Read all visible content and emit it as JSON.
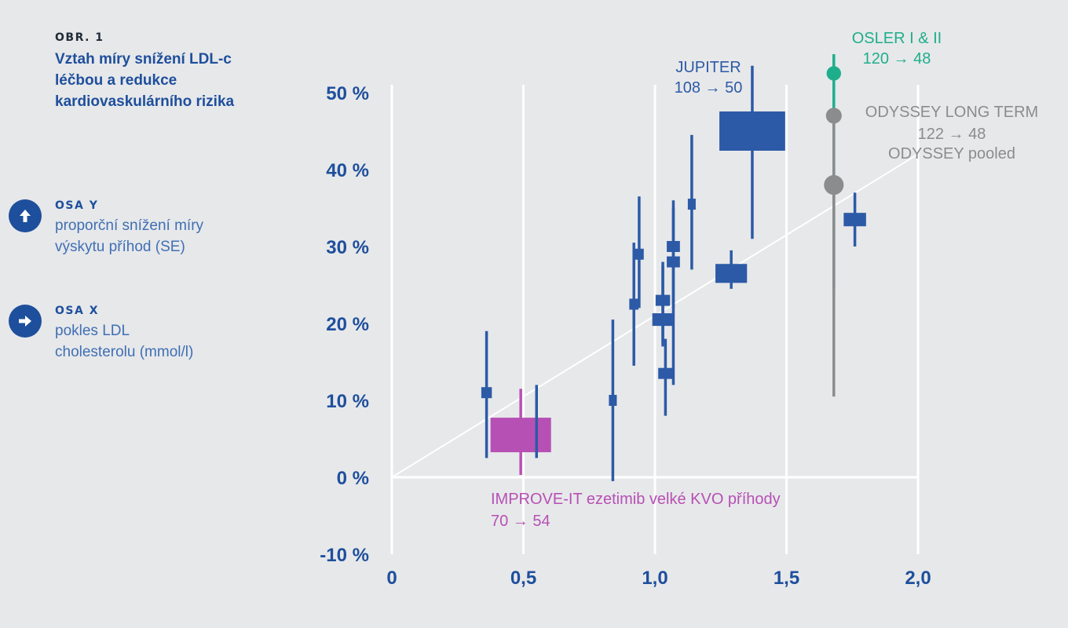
{
  "figure": {
    "label": "OBR. 1",
    "title": "Vztah míry snížení LDL-c léčbou a redukce kardiovaskulárního rizika"
  },
  "legend": {
    "y_axis": {
      "heading": "OSA Y",
      "description": "proporční snížení míry výskytu příhod (SE)",
      "icon": "arrow-up-icon"
    },
    "x_axis": {
      "heading": "OSA X",
      "description": "pokles LDL cholesterolu (mmol/l)",
      "icon": "arrow-right-icon"
    }
  },
  "colors": {
    "blue": "#2c5aa6",
    "magenta": "#b750b4",
    "green": "#1fae8c",
    "gray": "#8a8c8e",
    "gridline": "#ffffff",
    "tick_label": "#1e4f9c"
  },
  "chart_data": {
    "type": "scatter",
    "title": "Vztah míry snížení LDL-c léčbou a redukce kardiovaskulárního rizika",
    "xlabel": "pokles LDL cholesterolu (mmol/l)",
    "ylabel": "proporční snížení míry výskytu příhod (SE)",
    "xlim": [
      0,
      2.0
    ],
    "ylim": [
      -10,
      50
    ],
    "x_ticks": [
      {
        "value": 0,
        "label": "0"
      },
      {
        "value": 0.5,
        "label": "0,5"
      },
      {
        "value": 1.0,
        "label": "1,0"
      },
      {
        "value": 1.5,
        "label": "1,5"
      },
      {
        "value": 2.0,
        "label": "2,0"
      }
    ],
    "y_ticks": [
      {
        "value": -10,
        "label": "-10 %"
      },
      {
        "value": 0,
        "label": "0 %"
      },
      {
        "value": 10,
        "label": "10 %"
      },
      {
        "value": 20,
        "label": "20 %"
      },
      {
        "value": 30,
        "label": "30 %"
      },
      {
        "value": 40,
        "label": "40 %"
      },
      {
        "value": 50,
        "label": "50 %"
      }
    ],
    "grid": true,
    "regression_line": {
      "x": [
        0,
        2.0
      ],
      "y": [
        0,
        42
      ]
    },
    "trials": [
      {
        "x": 0.36,
        "y": 11,
        "ci": [
          2.5,
          19
        ],
        "size": 0.04,
        "color": "blue"
      },
      {
        "x": 0.49,
        "y": 5.5,
        "ci": [
          0.3,
          11.5
        ],
        "size": 0.23,
        "color": "magenta"
      },
      {
        "x": 0.55,
        "y": 5.5,
        "ci": [
          2.5,
          12
        ],
        "size": 0,
        "color": "blue"
      },
      {
        "x": 0.84,
        "y": 10,
        "ci": [
          -0.5,
          20.5
        ],
        "size": 0.03,
        "color": "blue"
      },
      {
        "x": 0.92,
        "y": 22.5,
        "ci": [
          14.5,
          30.5
        ],
        "size": 0.035,
        "color": "blue"
      },
      {
        "x": 0.94,
        "y": 29,
        "ci": [
          22,
          36.5
        ],
        "size": 0.035,
        "color": "blue"
      },
      {
        "x": 1.03,
        "y": 20.5,
        "ci": [
          17,
          28
        ],
        "size": 0.08,
        "color": "blue"
      },
      {
        "x": 1.03,
        "y": 23,
        "ci": [
          17.5,
          27.5
        ],
        "size": 0.055,
        "color": "blue"
      },
      {
        "x": 1.04,
        "y": 13.5,
        "ci": [
          8,
          18
        ],
        "size": 0.055,
        "color": "blue"
      },
      {
        "x": 1.07,
        "y": 30,
        "ci": [
          12,
          36
        ],
        "size": 0.05,
        "color": "blue"
      },
      {
        "x": 1.07,
        "y": 28,
        "ci": [
          22,
          35
        ],
        "size": 0.05,
        "color": "blue"
      },
      {
        "x": 1.14,
        "y": 35.5,
        "ci": [
          27,
          44.5
        ],
        "size": 0.03,
        "color": "blue"
      },
      {
        "x": 1.29,
        "y": 26.5,
        "ci": [
          24.5,
          29.5
        ],
        "size": 0.12,
        "color": "blue"
      },
      {
        "x": 1.37,
        "y": 45,
        "ci": [
          31,
          53.5
        ],
        "size": 0.25,
        "color": "blue"
      },
      {
        "x": 1.68,
        "y": 52.5,
        "ci": [
          24.5,
          55
        ],
        "size": 0.055,
        "color": "green"
      },
      {
        "x": 1.68,
        "y": 47,
        "ci": [
          24.5,
          47
        ],
        "size": 0.06,
        "color": "gray"
      },
      {
        "x": 1.68,
        "y": 38,
        "ci": [
          10.5,
          38
        ],
        "size": 0.075,
        "color": "gray"
      },
      {
        "x": 1.76,
        "y": 33.5,
        "ci": [
          30,
          37
        ],
        "size": 0.085,
        "color": "blue"
      }
    ],
    "annotations": [
      {
        "line1": "JUPITER",
        "line2": "108 → 50",
        "color": "blue"
      },
      {
        "line1": "OSLER I & II",
        "line2": "120 → 48",
        "color": "green"
      },
      {
        "line1": "ODYSSEY LONG TERM",
        "line2": "122 → 48",
        "color": "gray"
      },
      {
        "line1": "ODYSSEY pooled",
        "line2": "",
        "color": "gray"
      },
      {
        "line1": "IMPROVE-IT ezetimib velké KVO příhody",
        "line2": "70 → 54",
        "color": "magenta"
      }
    ]
  }
}
